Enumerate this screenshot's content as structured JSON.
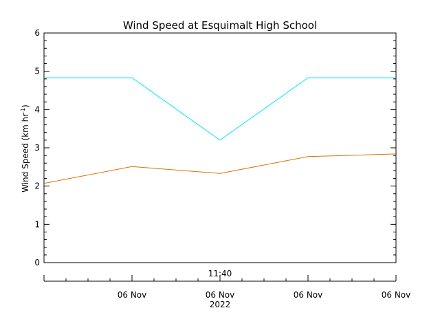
{
  "chart_data": {
    "type": "line",
    "title": "Wind Speed at Esquimalt High School",
    "ylabel": "Wind Speed (km hr",
    "ylabel_sup": "-1",
    "ylabel_close": ")",
    "ylim": [
      0,
      6
    ],
    "yticks": [
      0,
      1,
      2,
      3,
      4,
      5,
      6
    ],
    "x_count": 5,
    "top_time_label": "11:40",
    "x_tick_labels": [
      "06 Nov",
      "06 Nov",
      "06 Nov",
      "06 Nov"
    ],
    "year_label": "2022",
    "grid": false,
    "series": [
      {
        "color": "#00e5ff",
        "values": [
          4.83,
          4.83,
          3.2,
          4.83,
          4.83
        ]
      },
      {
        "color": "#e07000",
        "values": [
          2.07,
          2.51,
          2.33,
          2.77,
          2.84
        ]
      }
    ]
  }
}
